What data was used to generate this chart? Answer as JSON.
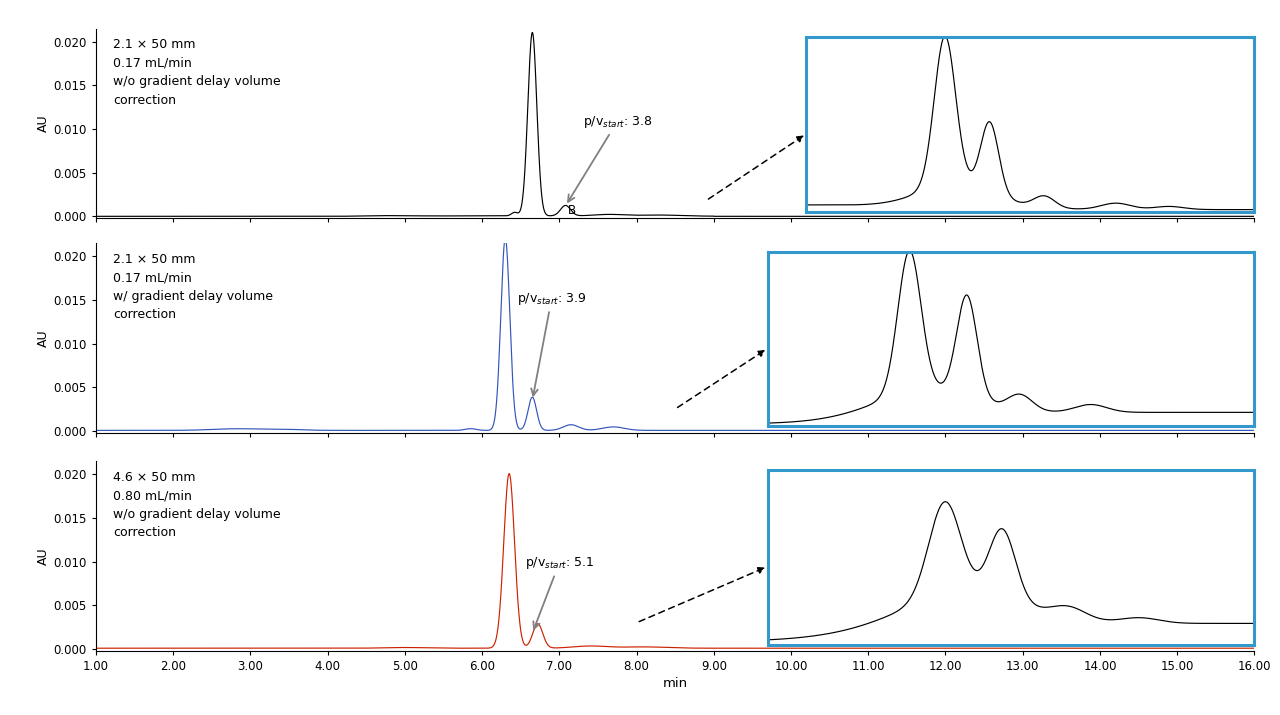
{
  "xlim": [
    1.0,
    16.0
  ],
  "ylim": [
    -0.0002,
    0.0215
  ],
  "yticks": [
    0.0,
    0.005,
    0.01,
    0.015,
    0.02
  ],
  "xticks": [
    1.0,
    2.0,
    3.0,
    4.0,
    5.0,
    6.0,
    7.0,
    8.0,
    9.0,
    10.0,
    11.0,
    12.0,
    13.0,
    14.0,
    15.0,
    16.0
  ],
  "xticklabels": [
    "1.00",
    "2.00",
    "3.00",
    "4.00",
    "5.00",
    "6.00",
    "7.00",
    "8.00",
    "9.00",
    "10.00",
    "11.00",
    "12.00",
    "13.00",
    "14.00",
    "15.00",
    "16.00"
  ],
  "xlabel": "min",
  "ylabel": "AU",
  "panel_colors": [
    "#000000",
    "#3355bb",
    "#cc2200"
  ],
  "panel_labels": [
    "2.1 × 50 mm\n0.17 mL/min\nw/o gradient delay volume\ncorrection",
    "2.1 × 50 mm\n0.17 mL/min\nw/ gradient delay volume\ncorrection",
    "4.6 × 50 mm\n0.80 mL/min\nw/o gradient delay volume\ncorrection"
  ],
  "background_color": "#ffffff",
  "inset_border_color": "#3399cc"
}
